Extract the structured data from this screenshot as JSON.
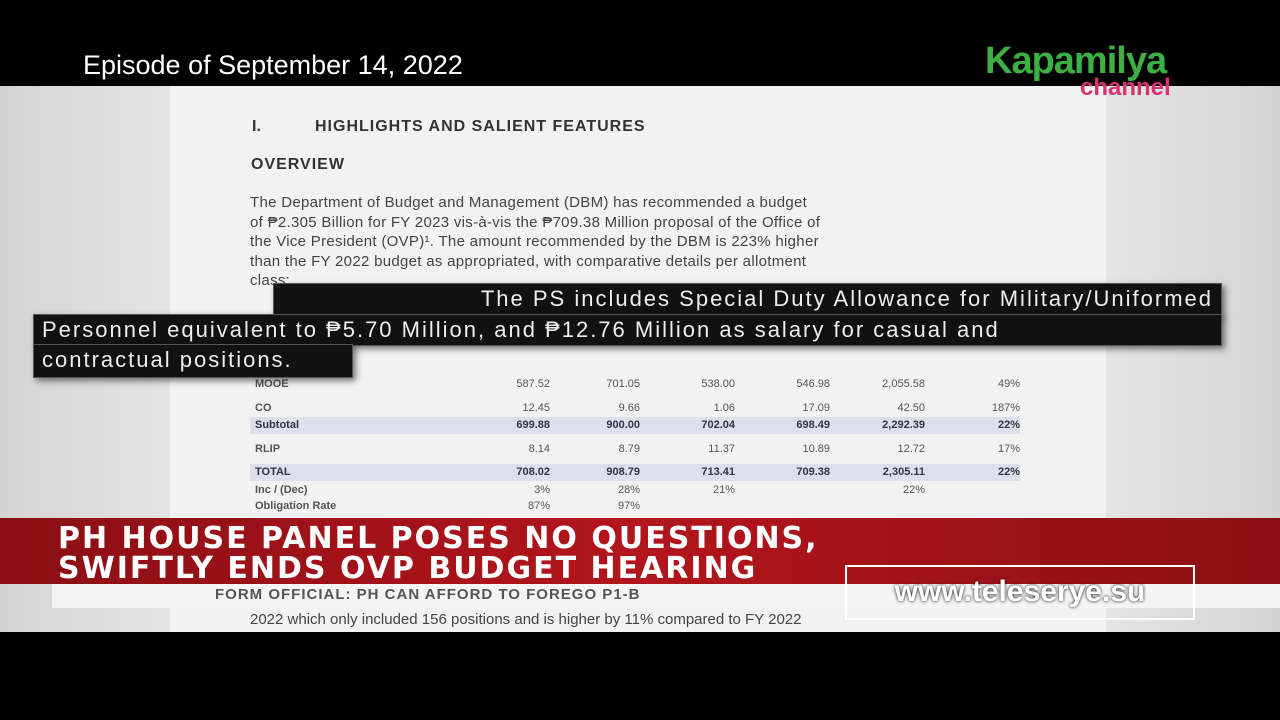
{
  "header": {
    "episode": "Episode of September 14, 2022",
    "logo_top": "Kapamilya",
    "logo_bottom": "channel"
  },
  "document": {
    "section_number": "I.",
    "section_title": "HIGHLIGHTS AND SALIENT FEATURES",
    "subtitle": "OVERVIEW",
    "paragraph": [
      "The Department of Budget and Management (DBM) has recommended a budget",
      "of ₱2.305 Billion for FY 2023 vis-à-vis the ₱709.38 Million proposal of the Office of",
      "the Vice President (OVP)¹. The amount recommended by the DBM is 223% higher",
      "than the FY 2022 budget as appropriated, with comparative details per allotment",
      "class:"
    ],
    "table": {
      "rows": [
        [
          "MOOE",
          "587.52",
          "701.05",
          "538.00",
          "546.98",
          "2,055.58",
          "49%"
        ],
        [
          "CO",
          "12.45",
          "9.66",
          "1.06",
          "17.09",
          "42.50",
          "187%"
        ],
        [
          "Subtotal",
          "699.88",
          "900.00",
          "702.04",
          "698.49",
          "2,292.39",
          "22%"
        ],
        [
          "RLIP",
          "8.14",
          "8.79",
          "11.37",
          "10.89",
          "12.72",
          "17%"
        ],
        [
          "TOTAL",
          "708.02",
          "908.79",
          "713.41",
          "709.38",
          "2,305.11",
          "22%"
        ],
        [
          "Inc / (Dec)",
          "3%",
          "28%",
          "21%",
          "",
          "22%",
          ""
        ],
        [
          "Obligation Rate",
          "87%",
          "97%",
          "",
          "",
          "",
          ""
        ]
      ]
    },
    "footer_line": "2022 which only included 156 positions and is higher by 11% compared to FY 2022"
  },
  "caption": {
    "lines": [
      "The PS includes Special Duty Allowance for Military/Uniformed",
      "Personnel equivalent to ₱5.70 Million, and ₱12.76 Million as salary for casual and",
      "contractual positions."
    ]
  },
  "lower_third": {
    "headline": [
      "PH HOUSE PANEL POSES NO QUESTIONS,",
      "SWIFTLY ENDS OVP BUDGET HEARING"
    ],
    "ticker": "FORM OFFICIAL: PH CAN AFFORD TO FOREGO P1-B",
    "watermark": "www.teleserye.su"
  }
}
